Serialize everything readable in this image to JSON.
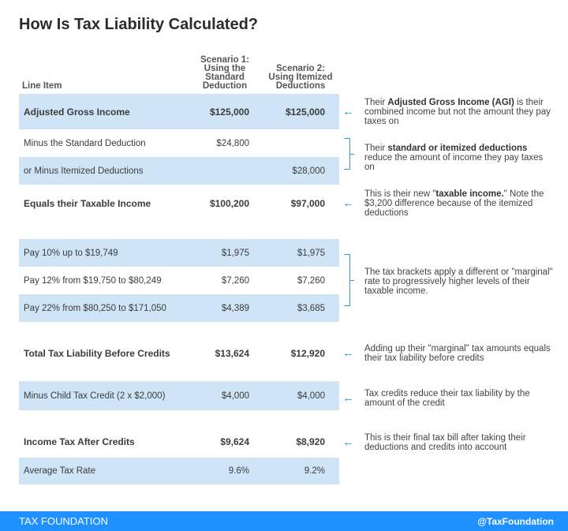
{
  "title": "How Is Tax Liability Calculated?",
  "headers": {
    "line_item": "Line Item",
    "s1": [
      "Scenario 1:",
      "Using the",
      "Standard",
      "Deduction"
    ],
    "s2": [
      "Scenario 2:",
      "Using Itemized",
      "Deductions"
    ]
  },
  "rows": [
    {
      "label": "Adjusted Gross Income",
      "s1": "$125,000",
      "s2": "$125,000"
    },
    {
      "label": "Minus the Standard Deduction",
      "s1": "$24,800",
      "s2": ""
    },
    {
      "label": "or Minus Itemized Deductions",
      "s1": "",
      "s2": "$28,000"
    },
    {
      "label": "Equals their Taxable Income",
      "s1": "$100,200",
      "s2": "$97,000"
    },
    {
      "label": "Pay 10% up to $19,749",
      "s1": "$1,975",
      "s2": "$1,975"
    },
    {
      "label": "Pay 12% from $19,750 to $80,249",
      "s1": "$7,260",
      "s2": "$7,260"
    },
    {
      "label": "Pay 22% from $80,250 to $171,050",
      "s1": "$4,389",
      "s2": "$3,685"
    },
    {
      "label": "Total Tax Liability Before Credits",
      "s1": "$13,624",
      "s2": "$12,920"
    },
    {
      "label": "Minus Child Tax Credit (2 x $2,000)",
      "s1": "$4,000",
      "s2": "$4,000"
    },
    {
      "label": "Income Tax After Credits",
      "s1": "$9,624",
      "s2": "$8,920"
    },
    {
      "label": "Average Tax Rate",
      "s1": "9.6%",
      "s2": "9.2%"
    }
  ],
  "notes": {
    "agi": {
      "pre": "Their ",
      "bold": "Adjusted Gross Income (AGI)",
      "post": " is their combined income but not the amount they pay taxes on"
    },
    "deductions": {
      "pre": "Their ",
      "bold": "standard or itemized deductions",
      "post": " reduce the amount of income they pay taxes on"
    },
    "taxable": {
      "pre": "This is their new \"",
      "bold": "taxable income.",
      "post": "\" Note the $3,200 difference because of the itemized deductions"
    },
    "brackets": "The tax brackets apply a different or \"marginal\" rate to progressively higher levels of their taxable income.",
    "total": "Adding up their \"marginal\" tax amounts equals their tax liability before credits",
    "credits": "Tax credits reduce their tax liability by the amount of the credit",
    "final": "This is their final tax bill after taking their deductions and credits into account"
  },
  "footer": {
    "brand": "TAX FOUNDATION",
    "handle": "@TaxFoundation"
  },
  "colors": {
    "shade": "#cfe4f7",
    "accent": "#2a9fd6",
    "footer": "#1e90ff"
  }
}
